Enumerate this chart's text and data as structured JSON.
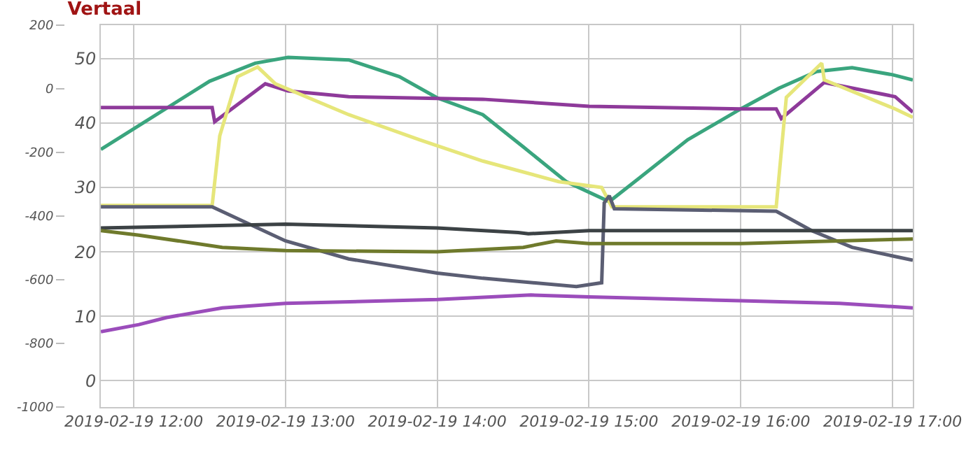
{
  "chart_data": {
    "type": "line",
    "title": "Vertaal",
    "grid": true,
    "marker": "none",
    "line_style": "solid",
    "xlim": [
      "2019-02-19T11:47",
      "2019-02-19T17:08"
    ],
    "xticks": [
      {
        "value": "2019-02-19T12:00",
        "label": "2019-02-19 12:00"
      },
      {
        "value": "2019-02-19T13:00",
        "label": "2019-02-19 13:00"
      },
      {
        "value": "2019-02-19T14:00",
        "label": "2019-02-19 14:00"
      },
      {
        "value": "2019-02-19T15:00",
        "label": "2019-02-19 15:00"
      },
      {
        "value": "2019-02-19T16:00",
        "label": "2019-02-19 16:00"
      },
      {
        "value": "2019-02-19T17:00",
        "label": "2019-02-19 17:00"
      }
    ],
    "ylim": [
      -4.1,
      55.2
    ],
    "yticks": [
      0,
      10,
      20,
      30,
      40,
      50
    ],
    "y2lim": [
      -1000,
      200
    ],
    "y2ticks": [
      -1000,
      -800,
      -600,
      -400,
      -200,
      0,
      200
    ],
    "series": [
      {
        "color": "#3aa57e",
        "x": [
          "2019-02-19T11:47",
          "2019-02-19T12:02",
          "2019-02-19T12:30",
          "2019-02-19T12:48",
          "2019-02-19T13:01",
          "2019-02-19T13:25",
          "2019-02-19T13:45",
          "2019-02-19T14:00",
          "2019-02-19T14:18",
          "2019-02-19T14:34",
          "2019-02-19T14:51",
          "2019-02-19T15:08",
          "2019-02-19T15:20",
          "2019-02-19T15:39",
          "2019-02-19T16:00",
          "2019-02-19T16:15",
          "2019-02-19T16:30",
          "2019-02-19T16:44",
          "2019-02-19T17:00",
          "2019-02-19T17:08"
        ],
        "values": [
          35.9,
          39.6,
          46.5,
          49.3,
          50.2,
          49.8,
          47.2,
          43.9,
          41.3,
          36.3,
          30.9,
          27.8,
          31.5,
          37.4,
          42.2,
          45.4,
          48.0,
          48.6,
          47.5,
          46.7
        ]
      },
      {
        "color": "#8e3a9a",
        "x": [
          "2019-02-19T11:47",
          "2019-02-19T12:31",
          "2019-02-19T12:32",
          "2019-02-19T12:52",
          "2019-02-19T13:01",
          "2019-02-19T13:25",
          "2019-02-19T14:18",
          "2019-02-19T15:00",
          "2019-02-19T16:00",
          "2019-02-19T16:14",
          "2019-02-19T16:16",
          "2019-02-19T16:33",
          "2019-02-19T17:01",
          "2019-02-19T17:08"
        ],
        "values": [
          42.4,
          42.4,
          40.2,
          46.1,
          45.0,
          44.1,
          43.7,
          42.6,
          42.2,
          42.2,
          40.7,
          46.3,
          44.1,
          41.7
        ]
      },
      {
        "color": "#e6e67a",
        "x": [
          "2019-02-19T11:47",
          "2019-02-19T12:31",
          "2019-02-19T12:34",
          "2019-02-19T12:41",
          "2019-02-19T12:49",
          "2019-02-19T12:56",
          "2019-02-19T13:25",
          "2019-02-19T13:53",
          "2019-02-19T14:18",
          "2019-02-19T14:48",
          "2019-02-19T15:05",
          "2019-02-19T15:09",
          "2019-02-19T16:14",
          "2019-02-19T16:18",
          "2019-02-19T16:32",
          "2019-02-19T16:33",
          "2019-02-19T17:01",
          "2019-02-19T17:08"
        ],
        "values": [
          27.2,
          27.2,
          38.0,
          47.2,
          48.7,
          46.1,
          41.3,
          37.4,
          34.1,
          30.9,
          30.0,
          27.0,
          27.0,
          44.0,
          49.3,
          46.7,
          42.2,
          40.9
        ]
      },
      {
        "color": "#5b5e73",
        "x": [
          "2019-02-19T11:47",
          "2019-02-19T12:31",
          "2019-02-19T13:00",
          "2019-02-19T13:25",
          "2019-02-19T14:00",
          "2019-02-19T14:18",
          "2019-02-19T14:55",
          "2019-02-19T15:05",
          "2019-02-19T15:06",
          "2019-02-19T15:08",
          "2019-02-19T15:10",
          "2019-02-19T16:14",
          "2019-02-19T16:28",
          "2019-02-19T16:44",
          "2019-02-19T17:08"
        ],
        "values": [
          27.0,
          27.0,
          21.7,
          18.9,
          16.7,
          15.9,
          14.6,
          15.2,
          27.6,
          28.7,
          26.7,
          26.3,
          23.3,
          20.7,
          18.7
        ]
      },
      {
        "color": "#3c4245",
        "x": [
          "2019-02-19T11:47",
          "2019-02-19T13:00",
          "2019-02-19T14:00",
          "2019-02-19T14:32",
          "2019-02-19T14:36",
          "2019-02-19T15:00",
          "2019-02-19T17:08"
        ],
        "values": [
          23.7,
          24.3,
          23.7,
          23.0,
          22.8,
          23.3,
          23.3
        ]
      },
      {
        "color": "#6f7a2c",
        "x": [
          "2019-02-19T11:47",
          "2019-02-19T12:02",
          "2019-02-19T12:35",
          "2019-02-19T13:00",
          "2019-02-19T14:00",
          "2019-02-19T14:34",
          "2019-02-19T14:47",
          "2019-02-19T15:00",
          "2019-02-19T16:00",
          "2019-02-19T17:08"
        ],
        "values": [
          23.3,
          22.6,
          20.7,
          20.2,
          20.0,
          20.7,
          21.7,
          21.3,
          21.3,
          22.0
        ]
      },
      {
        "color": "#9b4dbb",
        "x": [
          "2019-02-19T11:47",
          "2019-02-19T12:02",
          "2019-02-19T12:13",
          "2019-02-19T12:35",
          "2019-02-19T13:00",
          "2019-02-19T14:00",
          "2019-02-19T14:37",
          "2019-02-19T15:00",
          "2019-02-19T16:00",
          "2019-02-19T16:39",
          "2019-02-19T17:08"
        ],
        "values": [
          7.6,
          8.7,
          9.8,
          11.3,
          12.0,
          12.6,
          13.3,
          13.0,
          12.4,
          12.0,
          11.3
        ]
      }
    ]
  }
}
